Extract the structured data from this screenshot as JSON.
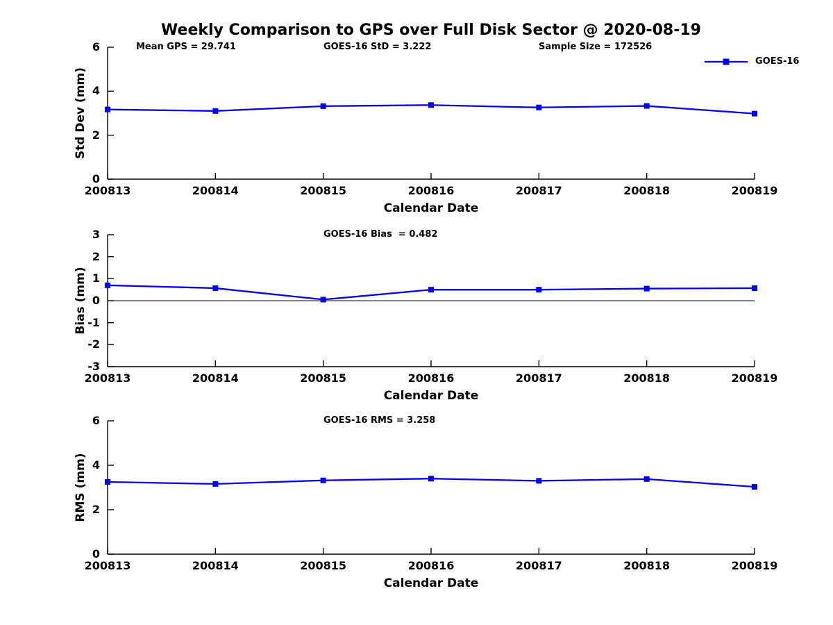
{
  "title": "Weekly Comparison to GPS over Full Disk Sector @ 2020-08-19",
  "legend": {
    "label": "GOES-16",
    "color": "#0000EE"
  },
  "chart_data": [
    {
      "id": "std_dev",
      "type": "line",
      "annotations": [
        "Mean GPS = 29.741",
        "GOES-16 StD = 3.222",
        "Sample Size = 172526"
      ],
      "xlabel": "Calendar Date",
      "ylabel": "Std Dev (mm)",
      "x": [
        "200813",
        "200814",
        "200815",
        "200816",
        "200817",
        "200818",
        "200819"
      ],
      "series": [
        {
          "name": "GOES-16",
          "values": [
            3.17,
            3.1,
            3.32,
            3.37,
            3.26,
            3.33,
            2.98
          ]
        }
      ],
      "ylim": [
        0,
        6
      ],
      "yticks": [
        0,
        2,
        4,
        6
      ],
      "zero_line": false,
      "grid": false,
      "legend_position": "top-right"
    },
    {
      "id": "bias",
      "type": "line",
      "annotations": [
        "GOES-16 Bias  = 0.482"
      ],
      "xlabel": "Calendar Date",
      "ylabel": "Bias (mm)",
      "x": [
        "200813",
        "200814",
        "200815",
        "200816",
        "200817",
        "200818",
        "200819"
      ],
      "series": [
        {
          "name": "GOES-16",
          "values": [
            0.7,
            0.57,
            0.05,
            0.5,
            0.5,
            0.55,
            0.57
          ]
        }
      ],
      "ylim": [
        -3,
        3
      ],
      "yticks": [
        3,
        2,
        1,
        0,
        -1,
        -2,
        -3
      ],
      "zero_line": true,
      "grid": false
    },
    {
      "id": "rms",
      "type": "line",
      "annotations": [
        "GOES-16 RMS = 3.258"
      ],
      "xlabel": "Calendar Date",
      "ylabel": "RMS (mm)",
      "x": [
        "200813",
        "200814",
        "200815",
        "200816",
        "200817",
        "200818",
        "200819"
      ],
      "series": [
        {
          "name": "GOES-16",
          "values": [
            3.25,
            3.16,
            3.32,
            3.4,
            3.3,
            3.38,
            3.03
          ]
        }
      ],
      "ylim": [
        0,
        6
      ],
      "yticks": [
        0,
        2,
        4,
        6
      ],
      "zero_line": false,
      "grid": false
    }
  ]
}
